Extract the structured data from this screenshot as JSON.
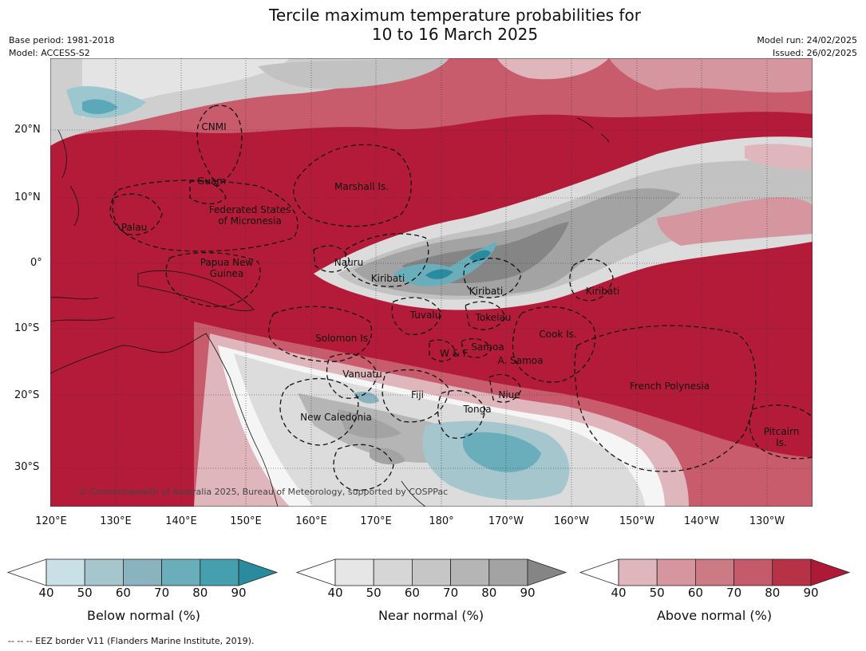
{
  "header": {
    "title_line1": "Tercile maximum temperature probabilities for",
    "title_line2": "10 to 16 March 2025",
    "base_period": "Base period: 1981-2018",
    "model": "Model: ACCESS-S2",
    "model_run": "Model run: 24/02/2025",
    "issued": "Issued: 26/02/2025"
  },
  "map": {
    "lat_labels": [
      "20°N",
      "10°N",
      "0°",
      "10°S",
      "20°S",
      "30°S"
    ],
    "lon_labels": [
      "120°E",
      "130°E",
      "140°E",
      "150°E",
      "160°E",
      "170°E",
      "180°",
      "170°W",
      "160°W",
      "150°W",
      "140°W",
      "130°W"
    ],
    "regions": [
      {
        "lines": [
          "CNMI"
        ]
      },
      {
        "lines": [
          "Guam"
        ]
      },
      {
        "lines": [
          "Marshall Is."
        ]
      },
      {
        "lines": [
          "Federated States",
          "of Micronesia"
        ]
      },
      {
        "lines": [
          "Palau"
        ]
      },
      {
        "lines": [
          "Papua New",
          "Guinea"
        ]
      },
      {
        "lines": [
          "Nauru"
        ]
      },
      {
        "lines": [
          "Kiribati"
        ]
      },
      {
        "lines": [
          "Kiribati"
        ]
      },
      {
        "lines": [
          "Kiribati"
        ]
      },
      {
        "lines": [
          "Tuvalu"
        ]
      },
      {
        "lines": [
          "Tokelau"
        ]
      },
      {
        "lines": [
          "Solomon Is."
        ]
      },
      {
        "lines": [
          "Cook Is."
        ]
      },
      {
        "lines": [
          "Samoa"
        ]
      },
      {
        "lines": [
          "W & F"
        ]
      },
      {
        "lines": [
          "A. Samoa"
        ]
      },
      {
        "lines": [
          "Vanuatu"
        ]
      },
      {
        "lines": [
          "Fiji"
        ]
      },
      {
        "lines": [
          "Niue"
        ]
      },
      {
        "lines": [
          "French Polynesia"
        ]
      },
      {
        "lines": [
          "Tonga"
        ]
      },
      {
        "lines": [
          "New Caledonia"
        ]
      },
      {
        "lines": [
          "Pitcairn",
          "Is."
        ]
      }
    ],
    "copyright": "© Commonwealth of Australia 2025, Bureau of Meteorology, supported by COSPPac",
    "colors": {
      "ocean_above": "#b31b38",
      "near_gray": "#a3a3a3",
      "below_teal": "#3a9bb0"
    }
  },
  "colorbars": [
    {
      "title": "Below normal (%)",
      "ticks": [
        "40",
        "50",
        "60",
        "70",
        "80",
        "90"
      ],
      "colors": [
        "#c9e0e6",
        "#a5c6cd",
        "#88b3bf",
        "#6aaebb",
        "#459faf",
        "#2a8a9e"
      ]
    },
    {
      "title": "Near normal (%)",
      "ticks": [
        "40",
        "50",
        "60",
        "70",
        "80",
        "90"
      ],
      "colors": [
        "#e6e6e6",
        "#d6d6d6",
        "#c6c6c6",
        "#b5b5b5",
        "#a3a3a3",
        "#858585"
      ]
    },
    {
      "title": "Above normal (%)",
      "ticks": [
        "40",
        "50",
        "60",
        "70",
        "80",
        "90"
      ],
      "colors": [
        "#e0b6bd",
        "#d6969f",
        "#cc7a84",
        "#c45a6a",
        "#b83247",
        "#ad1a35"
      ]
    }
  ],
  "footnote": "--  --  -- EEZ border V11 (Flanders Marine Institute, 2019)."
}
